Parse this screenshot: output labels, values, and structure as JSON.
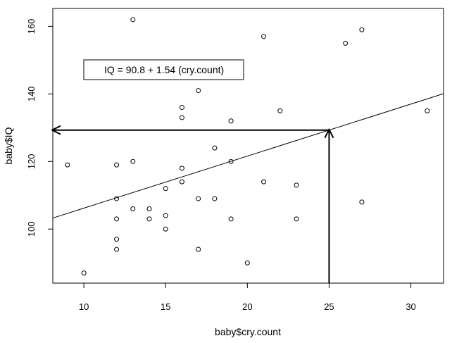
{
  "chart_data": {
    "type": "scatter",
    "xlabel": "baby$cry.count",
    "ylabel": "baby$IQ",
    "xlim": [
      8.1,
      32.0
    ],
    "ylim": [
      84.0,
      165.3
    ],
    "x_ticks": [
      10,
      15,
      20,
      25,
      30
    ],
    "y_ticks": [
      100,
      120,
      140,
      160
    ],
    "grid": false,
    "points": [
      {
        "x": 9,
        "y": 119
      },
      {
        "x": 10,
        "y": 87
      },
      {
        "x": 12,
        "y": 119
      },
      {
        "x": 12,
        "y": 109
      },
      {
        "x": 12,
        "y": 103
      },
      {
        "x": 12,
        "y": 97
      },
      {
        "x": 12,
        "y": 94
      },
      {
        "x": 13,
        "y": 162
      },
      {
        "x": 13,
        "y": 120
      },
      {
        "x": 13,
        "y": 106
      },
      {
        "x": 14,
        "y": 106
      },
      {
        "x": 14,
        "y": 103
      },
      {
        "x": 15,
        "y": 112
      },
      {
        "x": 15,
        "y": 104
      },
      {
        "x": 15,
        "y": 100
      },
      {
        "x": 16,
        "y": 136
      },
      {
        "x": 16,
        "y": 133
      },
      {
        "x": 16,
        "y": 118
      },
      {
        "x": 16,
        "y": 114
      },
      {
        "x": 17,
        "y": 141
      },
      {
        "x": 17,
        "y": 109
      },
      {
        "x": 17,
        "y": 94
      },
      {
        "x": 18,
        "y": 124
      },
      {
        "x": 18,
        "y": 109
      },
      {
        "x": 19,
        "y": 132
      },
      {
        "x": 19,
        "y": 120
      },
      {
        "x": 19,
        "y": 103
      },
      {
        "x": 20,
        "y": 90
      },
      {
        "x": 21,
        "y": 157
      },
      {
        "x": 21,
        "y": 114
      },
      {
        "x": 22,
        "y": 135
      },
      {
        "x": 23,
        "y": 113
      },
      {
        "x": 23,
        "y": 103
      },
      {
        "x": 26,
        "y": 155
      },
      {
        "x": 27,
        "y": 159
      },
      {
        "x": 27,
        "y": 108
      },
      {
        "x": 31,
        "y": 135
      }
    ],
    "regression": {
      "intercept": 90.8,
      "slope": 1.54
    },
    "equation_label": "IQ =  90.8 + 1.54 (cry.count)",
    "annotation_arrows": [
      {
        "from": [
          25,
          84.0
        ],
        "to": [
          25,
          129.3
        ]
      },
      {
        "from": [
          25,
          129.3
        ],
        "to": [
          8.1,
          129.3
        ]
      }
    ]
  }
}
